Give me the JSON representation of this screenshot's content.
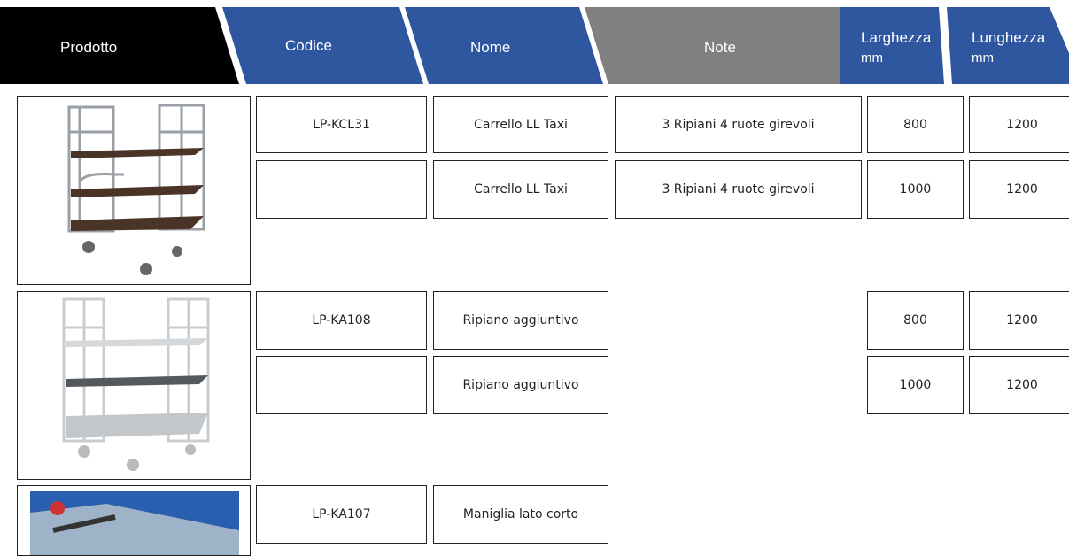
{
  "header": {
    "columns": [
      {
        "label": "Prodotto"
      },
      {
        "label": "Codice"
      },
      {
        "label": "Nome"
      },
      {
        "label": "Note"
      },
      {
        "label": "Larghezza",
        "unit": "mm"
      },
      {
        "label": "Lunghezza",
        "unit": "mm"
      }
    ]
  },
  "groups": [
    {
      "code": "LP-KCL31",
      "rows": [
        {
          "name": "Carrello LL Taxi",
          "note": "3 Ripiani 4 ruote girevoli",
          "width": 800,
          "length": 1200
        },
        {
          "name": "Carrello LL Taxi",
          "note": "3 Ripiani 4 ruote girevoli",
          "width": 1000,
          "length": 1200
        }
      ]
    },
    {
      "code": "LP-KA108",
      "rows": [
        {
          "name": "Ripiano aggiuntivo",
          "width": 800,
          "length": 1200
        },
        {
          "name": "Ripiano aggiuntivo",
          "width": 1000,
          "length": 1200
        }
      ]
    },
    {
      "code": "LP-KA107",
      "rows": [
        {
          "name": "Maniglia lato corto"
        }
      ]
    }
  ]
}
